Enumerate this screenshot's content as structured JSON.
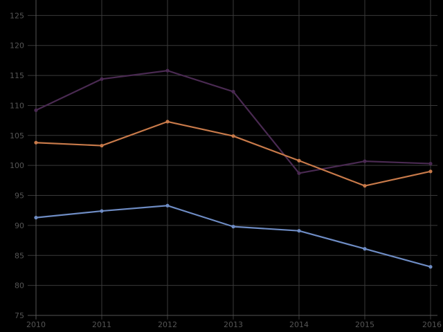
{
  "chart_data": {
    "type": "line",
    "title": "",
    "xlabel": "",
    "ylabel": "",
    "x": [
      "2010",
      "2011",
      "2012",
      "2013",
      "2014",
      "2015",
      "2016"
    ],
    "xlim": [
      2010,
      2016
    ],
    "ylim": [
      75,
      127
    ],
    "yticks": [
      75,
      80,
      85,
      90,
      95,
      100,
      105,
      110,
      115,
      120,
      125
    ],
    "grid": true,
    "legend": "none",
    "series": [
      {
        "color": "#4a2a52",
        "values": [
          109.2,
          114.4,
          115.8,
          112.3,
          98.7,
          100.7,
          100.3
        ]
      },
      {
        "color": "#c87a4a",
        "values": [
          103.8,
          103.3,
          107.3,
          104.9,
          100.8,
          96.6,
          99.0
        ]
      },
      {
        "color": "#6e8cc4",
        "values": [
          91.3,
          92.4,
          93.3,
          89.8,
          89.1,
          86.1,
          83.1
        ]
      }
    ]
  }
}
